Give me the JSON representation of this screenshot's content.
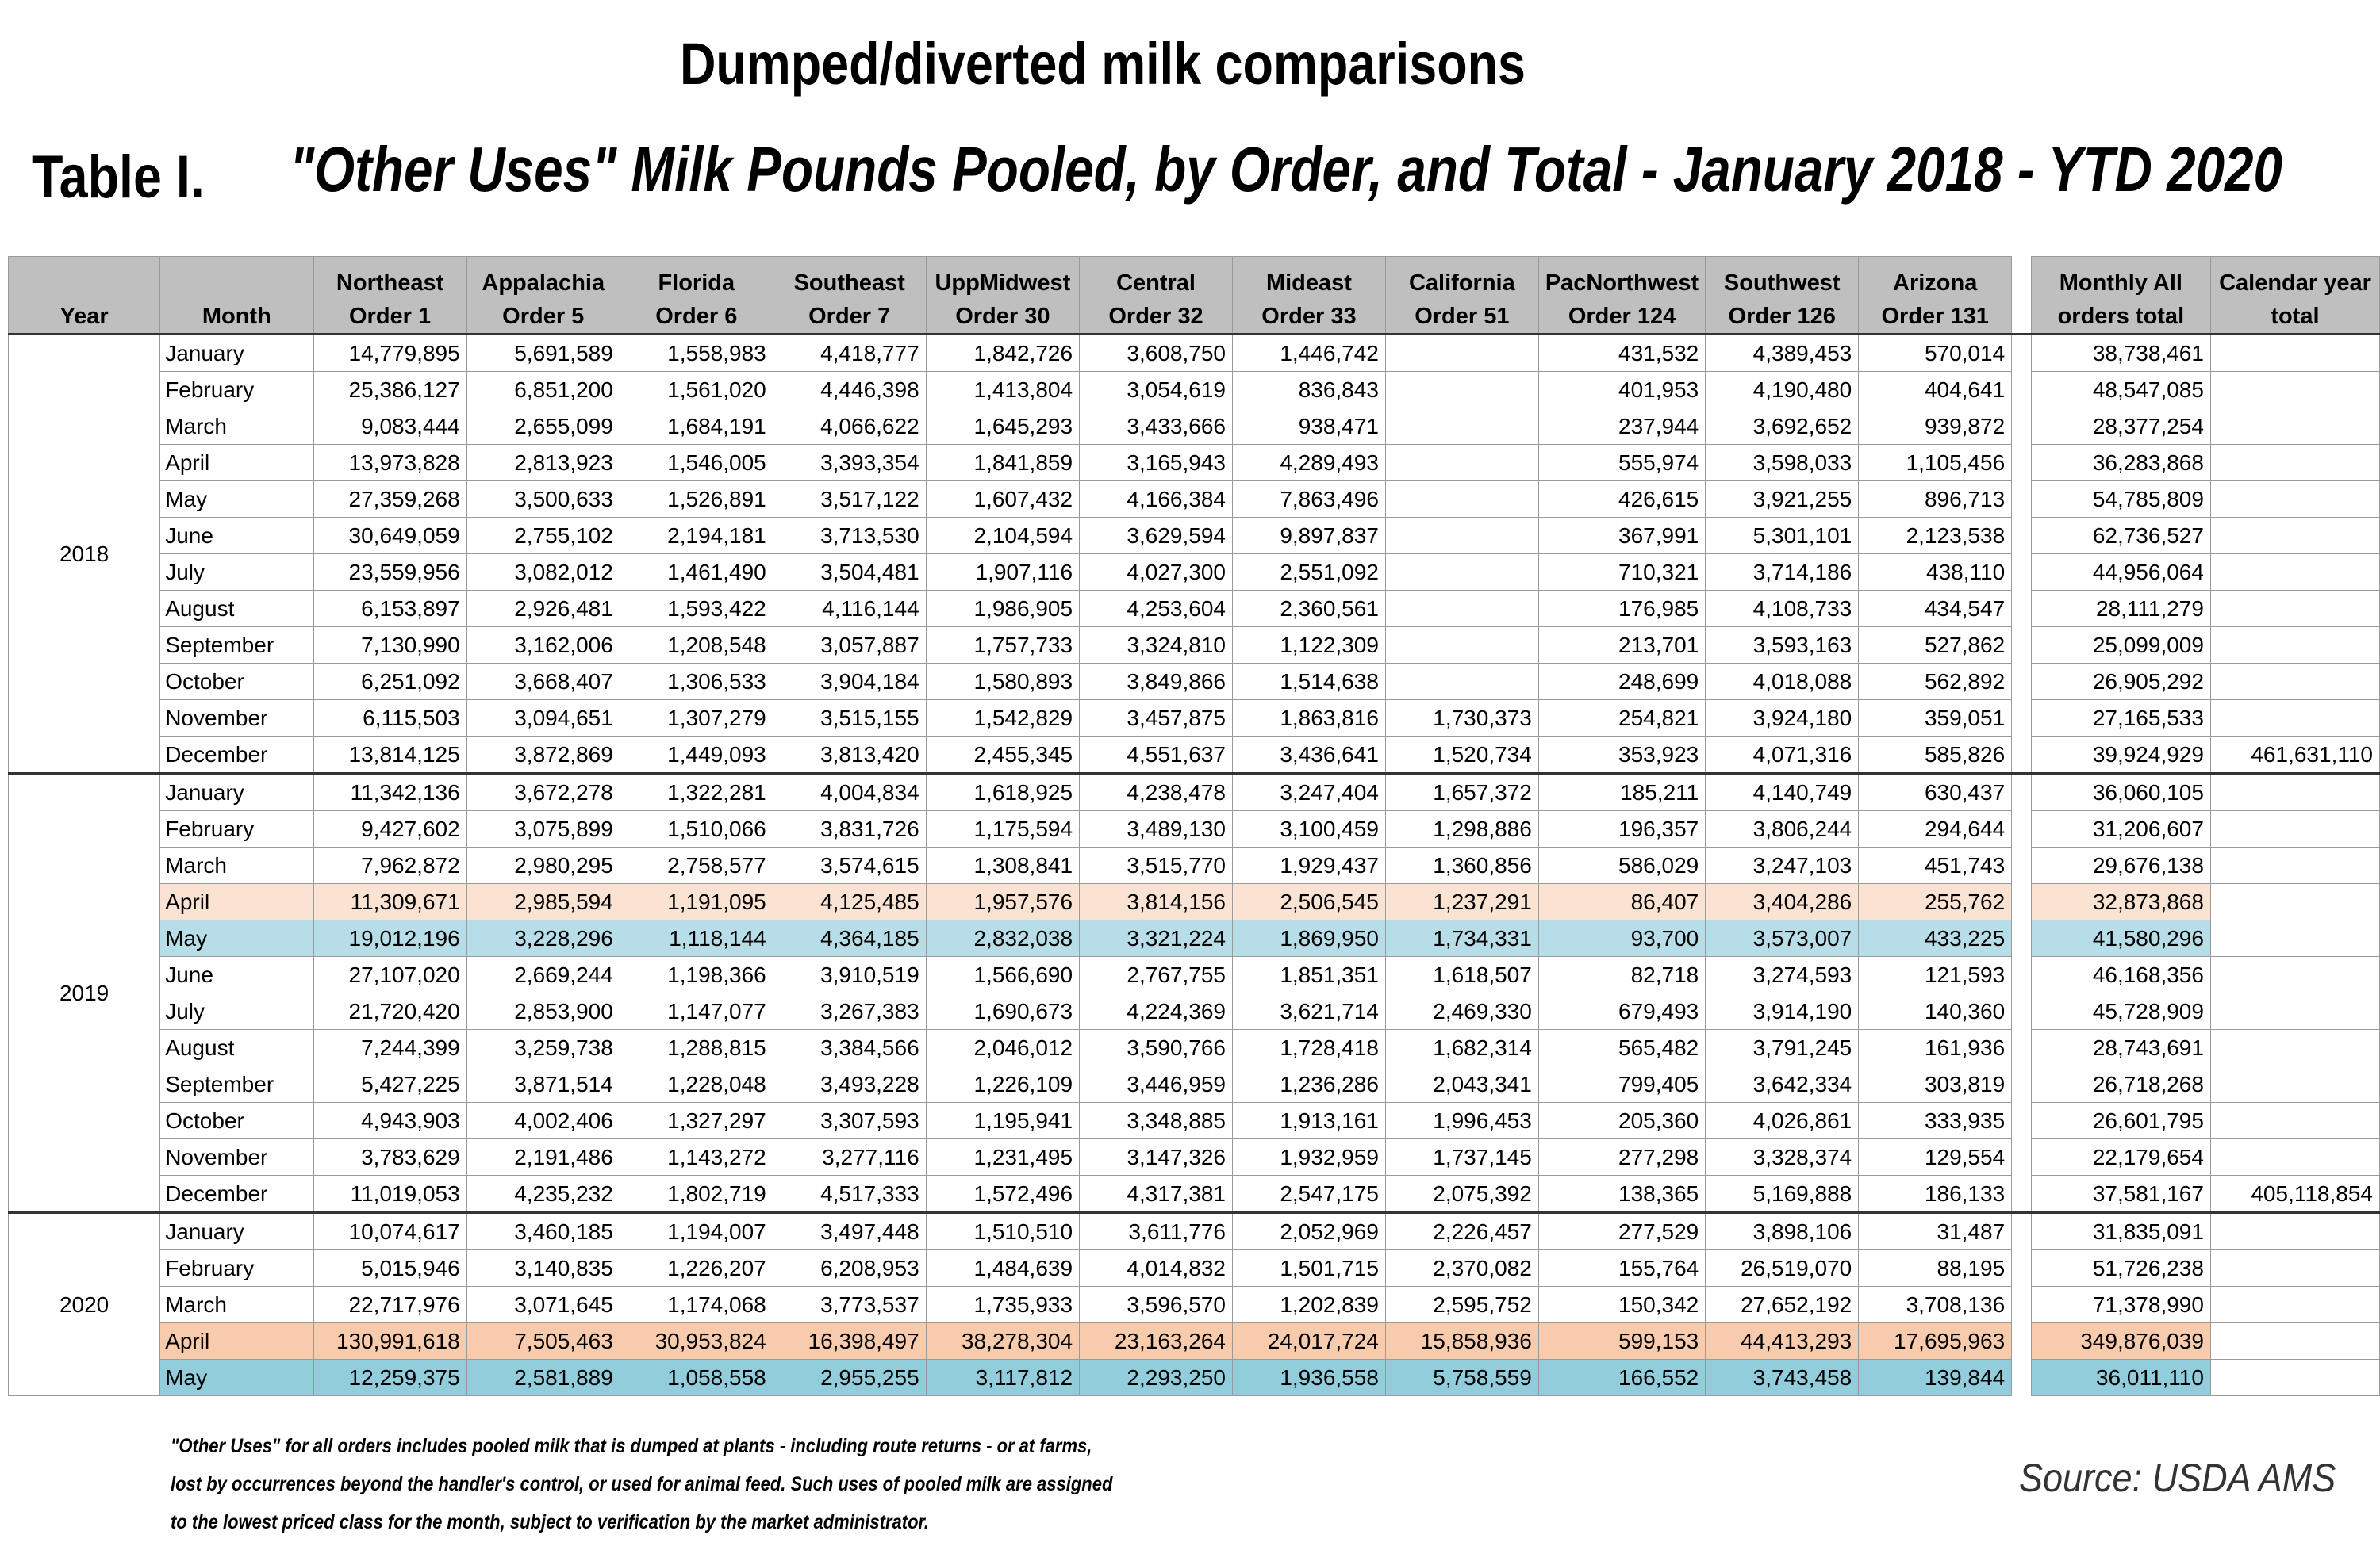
{
  "header": {
    "title": "Dumped/diverted milk comparisons",
    "table_label": "Table I.",
    "subtitle": "\"Other Uses\" Milk Pounds Pooled, by Order, and Total - January 2018 - YTD 2020"
  },
  "table": {
    "columns": [
      [
        "Year"
      ],
      [
        "Month"
      ],
      [
        "Northeast",
        "Order 1"
      ],
      [
        "Appalachia",
        "Order 5"
      ],
      [
        "Florida",
        "Order 6"
      ],
      [
        "Southeast",
        "Order 7"
      ],
      [
        "UppMidwest",
        "Order 30"
      ],
      [
        "Central",
        "Order 32"
      ],
      [
        "Mideast",
        "Order 33"
      ],
      [
        "California",
        "Order 51"
      ],
      [
        "PacNorthwest",
        "Order 124"
      ],
      [
        "Southwest",
        "Order 126"
      ],
      [
        "Arizona",
        "Order 131"
      ],
      [
        "Monthly All",
        "orders total"
      ],
      [
        "Calendar year",
        "total"
      ]
    ],
    "groups": [
      {
        "year": "2018",
        "rows": [
          [
            "January",
            "14,779,895",
            "5,691,589",
            "1,558,983",
            "4,418,777",
            "1,842,726",
            "3,608,750",
            "1,446,742",
            null,
            "431,532",
            "4,389,453",
            "570,014",
            "38,738,461"
          ],
          [
            "February",
            "25,386,127",
            "6,851,200",
            "1,561,020",
            "4,446,398",
            "1,413,804",
            "3,054,619",
            "836,843",
            null,
            "401,953",
            "4,190,480",
            "404,641",
            "48,547,085"
          ],
          [
            "March",
            "9,083,444",
            "2,655,099",
            "1,684,191",
            "4,066,622",
            "1,645,293",
            "3,433,666",
            "938,471",
            null,
            "237,944",
            "3,692,652",
            "939,872",
            "28,377,254"
          ],
          [
            "April",
            "13,973,828",
            "2,813,923",
            "1,546,005",
            "3,393,354",
            "1,841,859",
            "3,165,943",
            "4,289,493",
            null,
            "555,974",
            "3,598,033",
            "1,105,456",
            "36,283,868"
          ],
          [
            "May",
            "27,359,268",
            "3,500,633",
            "1,526,891",
            "3,517,122",
            "1,607,432",
            "4,166,384",
            "7,863,496",
            null,
            "426,615",
            "3,921,255",
            "896,713",
            "54,785,809"
          ],
          [
            "June",
            "30,649,059",
            "2,755,102",
            "2,194,181",
            "3,713,530",
            "2,104,594",
            "3,629,594",
            "9,897,837",
            null,
            "367,991",
            "5,301,101",
            "2,123,538",
            "62,736,527"
          ],
          [
            "July",
            "23,559,956",
            "3,082,012",
            "1,461,490",
            "3,504,481",
            "1,907,116",
            "4,027,300",
            "2,551,092",
            null,
            "710,321",
            "3,714,186",
            "438,110",
            "44,956,064"
          ],
          [
            "August",
            "6,153,897",
            "2,926,481",
            "1,593,422",
            "4,116,144",
            "1,986,905",
            "4,253,604",
            "2,360,561",
            null,
            "176,985",
            "4,108,733",
            "434,547",
            "28,111,279"
          ],
          [
            "September",
            "7,130,990",
            "3,162,006",
            "1,208,548",
            "3,057,887",
            "1,757,733",
            "3,324,810",
            "1,122,309",
            null,
            "213,701",
            "3,593,163",
            "527,862",
            "25,099,009"
          ],
          [
            "October",
            "6,251,092",
            "3,668,407",
            "1,306,533",
            "3,904,184",
            "1,580,893",
            "3,849,866",
            "1,514,638",
            null,
            "248,699",
            "4,018,088",
            "562,892",
            "26,905,292"
          ],
          [
            "November",
            "6,115,503",
            "3,094,651",
            "1,307,279",
            "3,515,155",
            "1,542,829",
            "3,457,875",
            "1,863,816",
            "1,730,373",
            "254,821",
            "3,924,180",
            "359,051",
            "27,165,533"
          ],
          [
            "December",
            "13,814,125",
            "3,872,869",
            "1,449,093",
            "3,813,420",
            "2,455,345",
            "4,551,637",
            "3,436,641",
            "1,520,734",
            "353,923",
            "4,071,316",
            "585,826",
            "39,924,929",
            "461,631,110"
          ]
        ]
      },
      {
        "year": "2019",
        "rows": [
          [
            "January",
            "11,342,136",
            "3,672,278",
            "1,322,281",
            "4,004,834",
            "1,618,925",
            "4,238,478",
            "3,247,404",
            "1,657,372",
            "185,211",
            "4,140,749",
            "630,437",
            "36,060,105"
          ],
          [
            "February",
            "9,427,602",
            "3,075,899",
            "1,510,066",
            "3,831,726",
            "1,175,594",
            "3,489,130",
            "3,100,459",
            "1,298,886",
            "196,357",
            "3,806,244",
            "294,644",
            "31,206,607"
          ],
          [
            "March",
            "7,962,872",
            "2,980,295",
            "2,758,577",
            "3,574,615",
            "1,308,841",
            "3,515,770",
            "1,929,437",
            "1,360,856",
            "586,029",
            "3,247,103",
            "451,743",
            "29,676,138"
          ],
          [
            "April",
            "11,309,671",
            "2,985,594",
            "1,191,095",
            "4,125,485",
            "1,957,576",
            "3,814,156",
            "2,506,545",
            "1,237,291",
            "86,407",
            "3,404,286",
            "255,762",
            "32,873,868"
          ],
          [
            "May",
            "19,012,196",
            "3,228,296",
            "1,118,144",
            "4,364,185",
            "2,832,038",
            "3,321,224",
            "1,869,950",
            "1,734,331",
            "93,700",
            "3,573,007",
            "433,225",
            "41,580,296"
          ],
          [
            "June",
            "27,107,020",
            "2,669,244",
            "1,198,366",
            "3,910,519",
            "1,566,690",
            "2,767,755",
            "1,851,351",
            "1,618,507",
            "82,718",
            "3,274,593",
            "121,593",
            "46,168,356"
          ],
          [
            "July",
            "21,720,420",
            "2,853,900",
            "1,147,077",
            "3,267,383",
            "1,690,673",
            "4,224,369",
            "3,621,714",
            "2,469,330",
            "679,493",
            "3,914,190",
            "140,360",
            "45,728,909"
          ],
          [
            "August",
            "7,244,399",
            "3,259,738",
            "1,288,815",
            "3,384,566",
            "2,046,012",
            "3,590,766",
            "1,728,418",
            "1,682,314",
            "565,482",
            "3,791,245",
            "161,936",
            "28,743,691"
          ],
          [
            "September",
            "5,427,225",
            "3,871,514",
            "1,228,048",
            "3,493,228",
            "1,226,109",
            "3,446,959",
            "1,236,286",
            "2,043,341",
            "799,405",
            "3,642,334",
            "303,819",
            "26,718,268"
          ],
          [
            "October",
            "4,943,903",
            "4,002,406",
            "1,327,297",
            "3,307,593",
            "1,195,941",
            "3,348,885",
            "1,913,161",
            "1,996,453",
            "205,360",
            "4,026,861",
            "333,935",
            "26,601,795"
          ],
          [
            "November",
            "3,783,629",
            "2,191,486",
            "1,143,272",
            "3,277,116",
            "1,231,495",
            "3,147,326",
            "1,932,959",
            "1,737,145",
            "277,298",
            "3,328,374",
            "129,554",
            "22,179,654"
          ],
          [
            "December",
            "11,019,053",
            "4,235,232",
            "1,802,719",
            "4,517,333",
            "1,572,496",
            "4,317,381",
            "2,547,175",
            "2,075,392",
            "138,365",
            "5,169,888",
            "186,133",
            "37,581,167",
            "405,118,854"
          ]
        ]
      },
      {
        "year": "2020",
        "rows": [
          [
            "January",
            "10,074,617",
            "3,460,185",
            "1,194,007",
            "3,497,448",
            "1,510,510",
            "3,611,776",
            "2,052,969",
            "2,226,457",
            "277,529",
            "3,898,106",
            "31,487",
            "31,835,091"
          ],
          [
            "February",
            "5,015,946",
            "3,140,835",
            "1,226,207",
            "6,208,953",
            "1,484,639",
            "4,014,832",
            "1,501,715",
            "2,370,082",
            "155,764",
            "26,519,070",
            "88,195",
            "51,726,238"
          ],
          [
            "March",
            "22,717,976",
            "3,071,645",
            "1,174,068",
            "3,773,537",
            "1,735,933",
            "3,596,570",
            "1,202,839",
            "2,595,752",
            "150,342",
            "27,652,192",
            "3,708,136",
            "71,378,990"
          ],
          [
            "April",
            "130,991,618",
            "7,505,463",
            "30,953,824",
            "16,398,497",
            "38,278,304",
            "23,163,264",
            "24,017,724",
            "15,858,936",
            "599,153",
            "44,413,293",
            "17,695,963",
            "349,876,039"
          ],
          [
            "May",
            "12,259,375",
            "2,581,889",
            "1,058,558",
            "2,955,255",
            "3,117,812",
            "2,293,250",
            "1,936,558",
            "5,758,559",
            "166,552",
            "3,743,458",
            "139,844",
            "36,011,110"
          ]
        ]
      }
    ]
  },
  "footnote": [
    "\"Other Uses\" for all orders includes pooled milk that is dumped at plants - including route returns - or at farms,",
    "lost by occurrences beyond the handler's control, or used for animal feed.  Such uses of pooled milk are assigned",
    "to the lowest priced class for the month, subject to verification by the market administrator."
  ],
  "source": "Source: USDA AMS"
}
